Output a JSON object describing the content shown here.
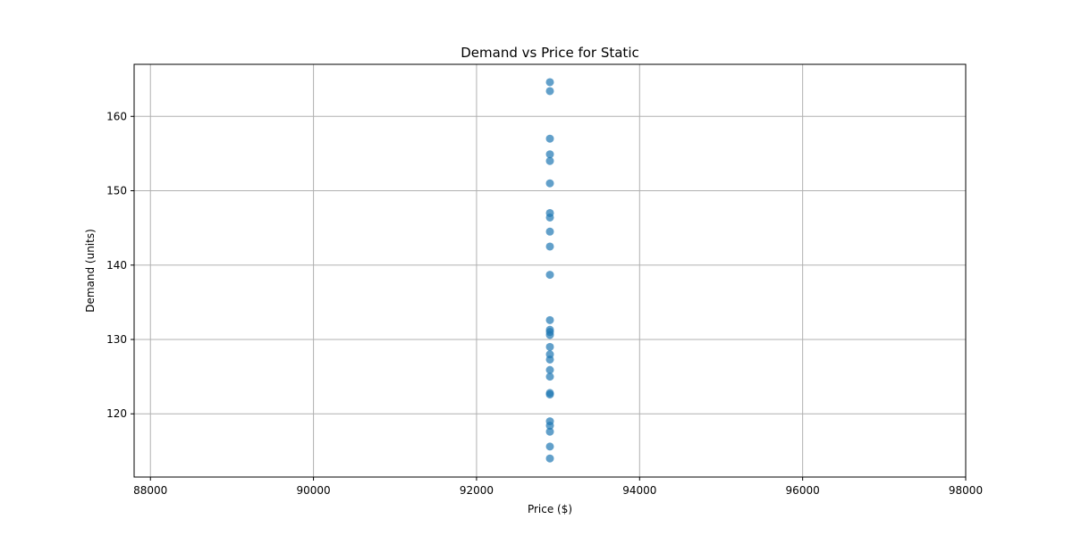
{
  "chart_data": {
    "type": "scatter",
    "title": "Demand vs Price for Static",
    "xlabel": "Price ($)",
    "ylabel": "Demand (units)",
    "xlim": [
      87800,
      98000
    ],
    "ylim": [
      111.5,
      167
    ],
    "xticks": [
      88000,
      90000,
      92000,
      94000,
      96000,
      98000
    ],
    "yticks": [
      120,
      130,
      140,
      150,
      160
    ],
    "grid": true,
    "color": "#1f77b4",
    "points": [
      {
        "x": 92900,
        "y": 164.6
      },
      {
        "x": 92900,
        "y": 163.4
      },
      {
        "x": 92900,
        "y": 157.0
      },
      {
        "x": 92900,
        "y": 154.9
      },
      {
        "x": 92900,
        "y": 154.0
      },
      {
        "x": 92900,
        "y": 151.0
      },
      {
        "x": 92900,
        "y": 147.0
      },
      {
        "x": 92900,
        "y": 146.4
      },
      {
        "x": 92900,
        "y": 144.5
      },
      {
        "x": 92900,
        "y": 142.5
      },
      {
        "x": 92900,
        "y": 138.7
      },
      {
        "x": 92900,
        "y": 132.6
      },
      {
        "x": 92900,
        "y": 131.3
      },
      {
        "x": 92900,
        "y": 131.0
      },
      {
        "x": 92900,
        "y": 130.6
      },
      {
        "x": 92900,
        "y": 129.0
      },
      {
        "x": 92900,
        "y": 128.0
      },
      {
        "x": 92900,
        "y": 127.3
      },
      {
        "x": 92900,
        "y": 125.9
      },
      {
        "x": 92900,
        "y": 125.0
      },
      {
        "x": 92900,
        "y": 122.8
      },
      {
        "x": 92900,
        "y": 122.6
      },
      {
        "x": 92900,
        "y": 119.0
      },
      {
        "x": 92900,
        "y": 118.4
      },
      {
        "x": 92900,
        "y": 117.6
      },
      {
        "x": 92900,
        "y": 115.6
      },
      {
        "x": 92900,
        "y": 114.0
      }
    ]
  }
}
